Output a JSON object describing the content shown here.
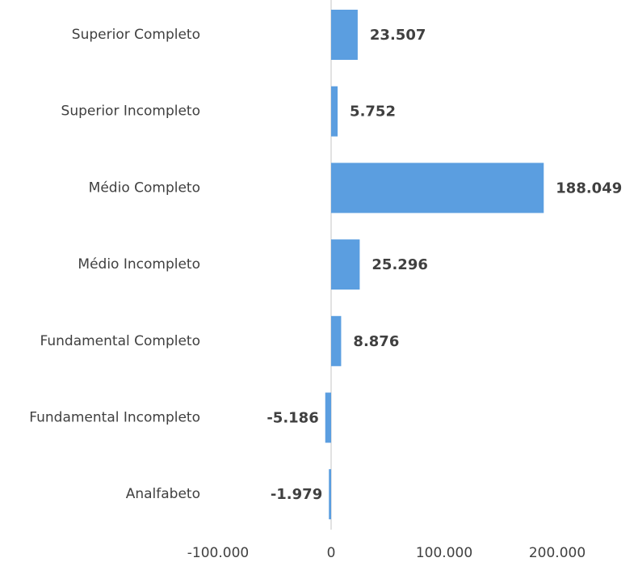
{
  "chart_data": {
    "type": "barh",
    "categories": [
      "Superior Completo",
      "Superior Incompleto",
      "Médio Completo",
      "Médio Incompleto",
      "Fundamental Completo",
      "Fundamental Incompleto",
      "Analfabeto"
    ],
    "values": [
      23507,
      5752,
      188049,
      25296,
      8876,
      -5186,
      -1979
    ],
    "value_labels": [
      "23.507",
      "5.752",
      "188.049",
      "25.296",
      "8.876",
      "-5.186",
      "-1.979"
    ],
    "color": "#5b9ee0",
    "xlim": [
      -100000,
      200000
    ],
    "xticks": [
      {
        "value": -100000,
        "label": "-100.000"
      },
      0,
      {
        "value": 100000,
        "label": "100.000"
      },
      {
        "value": 200000,
        "label": "200.000"
      }
    ]
  }
}
